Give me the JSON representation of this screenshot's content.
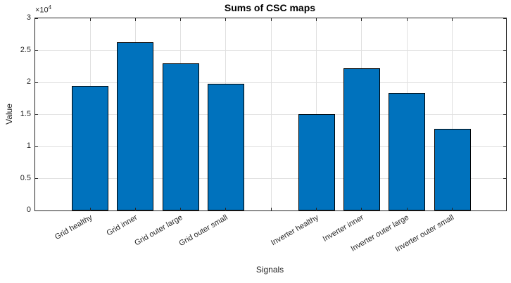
{
  "chart_data": {
    "type": "bar",
    "title": "Sums of CSC maps",
    "xlabel": "Signals",
    "ylabel": "Value",
    "exponent": {
      "base": "×10",
      "exp": "4"
    },
    "categories": [
      "Grid healthy",
      "Grid inner",
      "Grid outer large",
      "Grid outer small",
      "Inverter healthy",
      "Inverter inner",
      "Inverter outer large",
      "Inverter outer small"
    ],
    "values": [
      19400,
      26300,
      23000,
      19800,
      15100,
      22200,
      18400,
      12800
    ],
    "slot_indices": [
      0,
      1,
      2,
      3,
      5,
      6,
      7,
      8
    ],
    "num_slots": 9,
    "ylim": [
      0,
      30000
    ],
    "ytick_values": [
      0,
      5000,
      10000,
      15000,
      20000,
      25000,
      30000
    ],
    "ytick_labels": [
      "0",
      "0.5",
      "1",
      "1.5",
      "2",
      "2.5",
      "3"
    ],
    "xtick_angle_deg": 30,
    "grid": true,
    "legend": null,
    "colors": {
      "bar_fill": "#0072BD",
      "bar_edge": "#000000",
      "grid": "#e0e0e0",
      "axis": "#262626",
      "title": "#000000"
    }
  }
}
